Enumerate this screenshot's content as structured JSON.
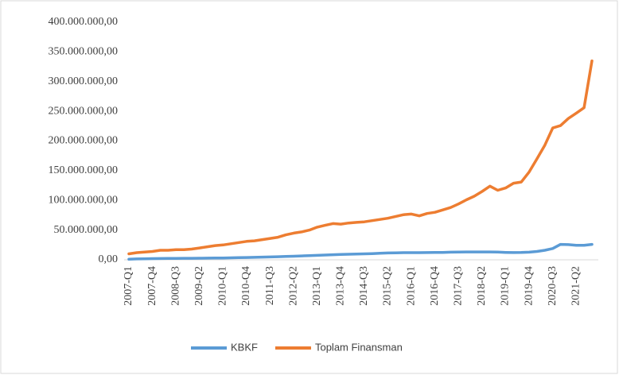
{
  "chart_data": {
    "type": "line",
    "categories": [
      "2007-Q1",
      null,
      null,
      "2007-Q4",
      null,
      null,
      "2008-Q3",
      null,
      null,
      "2009-Q2",
      null,
      null,
      "2010-Q1",
      null,
      null,
      "2010-Q4",
      null,
      null,
      "2011-Q3",
      null,
      null,
      "2012-Q2",
      null,
      null,
      "2013-Q1",
      null,
      null,
      "2013-Q4",
      null,
      null,
      "2014-Q3",
      null,
      null,
      "2015-Q2",
      null,
      null,
      "2016-Q1",
      null,
      null,
      "2016-Q4",
      null,
      null,
      "2017-Q3",
      null,
      null,
      "2018-Q2",
      null,
      null,
      "2019-Q1",
      null,
      null,
      "2019-Q4",
      null,
      null,
      "2020-Q3",
      null,
      null,
      "2021-Q2",
      null,
      null
    ],
    "series": [
      {
        "name": "KBKF",
        "color": "#5b9bd5",
        "values": [
          1000000,
          1500000,
          1800000,
          2000000,
          2200000,
          2300000,
          2400000,
          2500000,
          2600000,
          2700000,
          2800000,
          2900000,
          3000000,
          3300000,
          3600000,
          3900000,
          4200000,
          4500000,
          4800000,
          5200000,
          5600000,
          6000000,
          6500000,
          7000000,
          7500000,
          8000000,
          8500000,
          9000000,
          9300000,
          9600000,
          10000000,
          10500000,
          11000000,
          11500000,
          11800000,
          12000000,
          12000000,
          12000000,
          12200000,
          12300000,
          12500000,
          12800000,
          13000000,
          13200000,
          13300000,
          13300000,
          13200000,
          13000000,
          12500000,
          12200000,
          12300000,
          12800000,
          14000000,
          16000000,
          19000000,
          26000000,
          25500000,
          24500000,
          24500000,
          26000000
        ]
      },
      {
        "name": "Toplam Finansman",
        "color": "#ed7d31",
        "values": [
          10000000,
          12000000,
          13000000,
          14000000,
          16000000,
          16000000,
          17000000,
          17000000,
          18000000,
          20000000,
          22000000,
          24000000,
          25000000,
          27000000,
          29000000,
          31000000,
          32000000,
          34000000,
          36000000,
          38000000,
          42000000,
          45000000,
          47000000,
          50000000,
          55000000,
          58000000,
          61000000,
          60000000,
          62000000,
          63000000,
          64000000,
          66000000,
          68000000,
          70000000,
          73000000,
          76000000,
          77000000,
          74000000,
          78000000,
          80000000,
          84000000,
          88000000,
          94000000,
          101000000,
          107000000,
          115000000,
          124000000,
          117000000,
          121000000,
          129000000,
          131000000,
          148000000,
          170000000,
          193000000,
          222000000,
          226000000,
          238000000,
          247000000,
          256000000,
          335000000
        ]
      }
    ],
    "ylim": [
      0,
      400000000
    ],
    "yticks": [
      {
        "value": 0,
        "label": "0,00"
      },
      {
        "value": 50000000,
        "label": "50.000.000,00"
      },
      {
        "value": 100000000,
        "label": "100.000.000,00"
      },
      {
        "value": 150000000,
        "label": "150.000.000,00"
      },
      {
        "value": 200000000,
        "label": "200.000.000,00"
      },
      {
        "value": 250000000,
        "label": "250.000.000,00"
      },
      {
        "value": 300000000,
        "label": "300.000.000,00"
      },
      {
        "value": 350000000,
        "label": "350.000.000,00"
      },
      {
        "value": 400000000,
        "label": "400.000.000,00"
      }
    ],
    "legend": "bottom"
  }
}
